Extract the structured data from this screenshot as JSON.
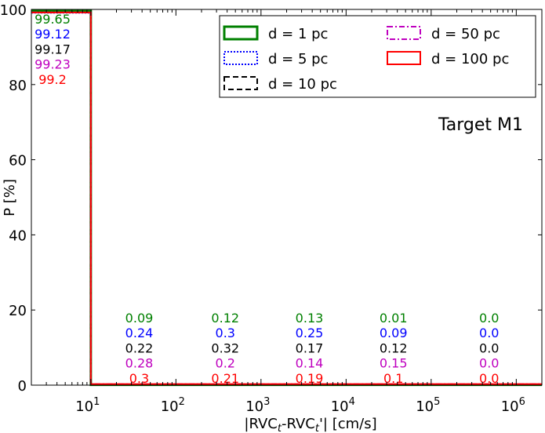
{
  "chart_data": {
    "type": "step-histogram",
    "title": "Target M1",
    "xlabel_parts": {
      "pre": "|RVC",
      "sub1": "t",
      "mid": "-RVC",
      "sub2": "t",
      "post": "'| [cm/s]"
    },
    "ylabel": "P [%]",
    "xscale": "log",
    "xlim": [
      2.0,
      2000000
    ],
    "ylim": [
      0,
      100
    ],
    "x_ticks": [
      {
        "value": 10,
        "label": "1"
      },
      {
        "value": 100,
        "label": "2"
      },
      {
        "value": 1000,
        "label": "3"
      },
      {
        "value": 10000,
        "label": "4"
      },
      {
        "value": 100000,
        "label": "5"
      },
      {
        "value": 1000000,
        "label": "6"
      }
    ],
    "x_tick_base": "10",
    "y_ticks": [
      0,
      20,
      40,
      60,
      80,
      100
    ],
    "bin_edge": 10,
    "legend_position": "top-right",
    "series": [
      {
        "name": "d = 1 pc",
        "color": "#008000",
        "dash": "solid",
        "width": 3,
        "values": [
          99.65,
          0.09,
          0.12,
          0.13,
          0.01,
          0.0
        ],
        "labels": [
          "99.65",
          "0.09",
          "0.12",
          "0.13",
          "0.01",
          "0.0"
        ]
      },
      {
        "name": "d = 5 pc",
        "color": "#0000ff",
        "dash": "dotted",
        "width": 2,
        "values": [
          99.12,
          0.24,
          0.3,
          0.25,
          0.09,
          0.0
        ],
        "labels": [
          "99.12",
          "0.24",
          "0.3",
          "0.25",
          "0.09",
          "0.0"
        ]
      },
      {
        "name": "d = 10 pc",
        "color": "#000000",
        "dash": "dashed",
        "width": 2,
        "values": [
          99.17,
          0.22,
          0.32,
          0.17,
          0.12,
          0.0
        ],
        "labels": [
          "99.17",
          "0.22",
          "0.32",
          "0.17",
          "0.12",
          "0.0"
        ]
      },
      {
        "name": "d = 50 pc",
        "color": "#bf00bf",
        "dash": "dashdot",
        "width": 2,
        "values": [
          99.23,
          0.28,
          0.2,
          0.14,
          0.15,
          0.0
        ],
        "labels": [
          "99.23",
          "0.28",
          "0.2",
          "0.14",
          "0.15",
          "0.0"
        ]
      },
      {
        "name": "d = 100 pc",
        "color": "#ff0000",
        "dash": "solid",
        "width": 2,
        "values": [
          99.2,
          0.3,
          0.21,
          0.19,
          0.1,
          0.0
        ],
        "labels": [
          "99.2",
          "0.3",
          "0.21",
          "0.19",
          "0.1",
          "0.0"
        ]
      }
    ],
    "label_x_positions": [
      8,
      37,
      380,
      3700,
      36000,
      480000
    ]
  }
}
